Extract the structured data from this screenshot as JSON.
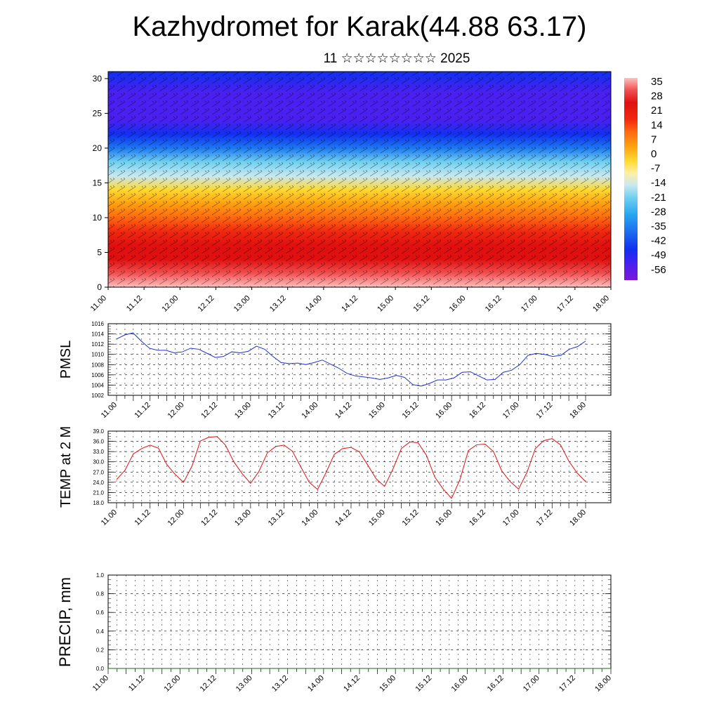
{
  "header": {
    "title": "Kazhydromet for Karak(44.88 63.17)",
    "subtitle": "11 ☆☆☆☆☆☆☆☆ 2025"
  },
  "colors": {
    "pmsl_line": "#2030d0",
    "temp_line": "#e01010",
    "frame": "#000000",
    "gridline": "#000000"
  },
  "chart_data": [
    {
      "id": "cross_section",
      "type": "heatmap",
      "title": "",
      "xlabel": "",
      "ylabel": "",
      "x_tick_labels": [
        "11.00",
        "11.12",
        "12.00",
        "12.12",
        "13.00",
        "13.12",
        "14.00",
        "14.12",
        "15.00",
        "15.12",
        "16.00",
        "16.12",
        "17.00",
        "17.12",
        "18.00"
      ],
      "y_ticks": [
        0,
        5,
        10,
        15,
        20,
        25,
        30
      ],
      "ylim": [
        0,
        31
      ],
      "colorbar": {
        "labels": [
          35,
          28,
          21,
          14,
          7,
          0,
          -7,
          -14,
          -21,
          -28,
          -35,
          -42,
          -49,
          -56
        ],
        "range": [
          -60,
          38
        ]
      },
      "vertical_profile": {
        "levels": [
          0,
          2,
          4,
          6,
          8,
          10,
          12,
          14,
          16,
          18,
          20,
          22,
          24,
          26,
          28,
          31
        ],
        "values": [
          33,
          28,
          22,
          19,
          15,
          8,
          0,
          -6,
          -14,
          -24,
          -35,
          -45,
          -52,
          -55,
          -53,
          -50
        ]
      },
      "surface_warm_maxima": [
        "11.12",
        "12.12",
        "13.12",
        "14.12",
        "15.12",
        "16.12",
        "17.12"
      ],
      "overlay": "wind barbs"
    },
    {
      "id": "pmsl",
      "type": "line",
      "ylabel": "PMSL",
      "x_tick_labels": [
        "11.00",
        "11.12",
        "12.00",
        "12.12",
        "13.00",
        "13.12",
        "14.00",
        "14.12",
        "15.00",
        "15.12",
        "16.00",
        "16.12",
        "17.00",
        "17.12",
        "18.00"
      ],
      "y_ticks": [
        "1002",
        "1004",
        "1006",
        "1008",
        "1010",
        "1012",
        "1014",
        "1016"
      ],
      "ylim": [
        1002,
        1016
      ],
      "series": [
        {
          "values": [
            1013.0,
            1013.8,
            1014.2,
            1012.6,
            1011.2,
            1010.8,
            1010.8,
            1010.3,
            1010.5,
            1011.2,
            1011.0,
            1010.2,
            1009.4,
            1009.6,
            1010.5,
            1010.3,
            1010.6,
            1011.6,
            1011.0,
            1009.6,
            1008.4,
            1008.2,
            1008.3,
            1008.0,
            1008.4,
            1008.9,
            1008.1,
            1007.3,
            1006.3,
            1005.8,
            1005.6,
            1005.4,
            1005.1,
            1005.4,
            1005.9,
            1005.5,
            1004.1,
            1003.8,
            1004.3,
            1005.0,
            1005.0,
            1005.4,
            1006.5,
            1006.6,
            1005.8,
            1005.0,
            1005.1,
            1006.5,
            1006.9,
            1008.0,
            1009.8,
            1010.2,
            1010.0,
            1009.6,
            1009.8,
            1011.0,
            1011.5,
            1012.6
          ]
        }
      ]
    },
    {
      "id": "temp",
      "type": "line",
      "ylabel": "TEMP at 2 M",
      "x_tick_labels": [
        "11.00",
        "11.12",
        "12.00",
        "12.12",
        "13.00",
        "13.12",
        "14.00",
        "14.12",
        "15.00",
        "15.12",
        "16.00",
        "16.12",
        "17.00",
        "17.12",
        "18.00"
      ],
      "y_ticks": [
        "18.0",
        "21.0",
        "24.0",
        "27.0",
        "30.0",
        "33.0",
        "36.0",
        "39.0"
      ],
      "ylim": [
        18,
        39
      ],
      "series": [
        {
          "values": [
            24.8,
            27.5,
            32.3,
            33.9,
            34.9,
            34.0,
            29.2,
            26.3,
            24.0,
            28.7,
            36.1,
            37.2,
            37.4,
            34.9,
            30.0,
            26.5,
            23.7,
            27.2,
            32.6,
            34.5,
            34.9,
            33.1,
            28.5,
            24.0,
            21.9,
            26.8,
            32.2,
            33.9,
            34.2,
            32.9,
            29.0,
            25.0,
            22.8,
            27.9,
            33.9,
            35.8,
            35.6,
            31.9,
            25.5,
            22.0,
            19.3,
            24.8,
            33.3,
            35.0,
            35.2,
            33.0,
            27.3,
            24.2,
            22.0,
            26.9,
            33.9,
            36.2,
            36.8,
            35.0,
            30.2,
            26.7,
            24.2
          ]
        }
      ]
    },
    {
      "id": "precip",
      "type": "line",
      "ylabel": "PRECIP, mm",
      "x_tick_labels": [
        "11.00",
        "11.12",
        "12.00",
        "12.12",
        "13.00",
        "13.12",
        "14.00",
        "14.12",
        "15.00",
        "15.12",
        "16.00",
        "16.12",
        "17.00",
        "17.12",
        "18.00"
      ],
      "y_ticks": [
        "0.0",
        "0.2",
        "0.4",
        "0.6",
        "0.8",
        "1.0"
      ],
      "ylim": [
        0,
        1
      ],
      "series": [
        {
          "values": [
            0,
            0
          ]
        }
      ]
    }
  ]
}
